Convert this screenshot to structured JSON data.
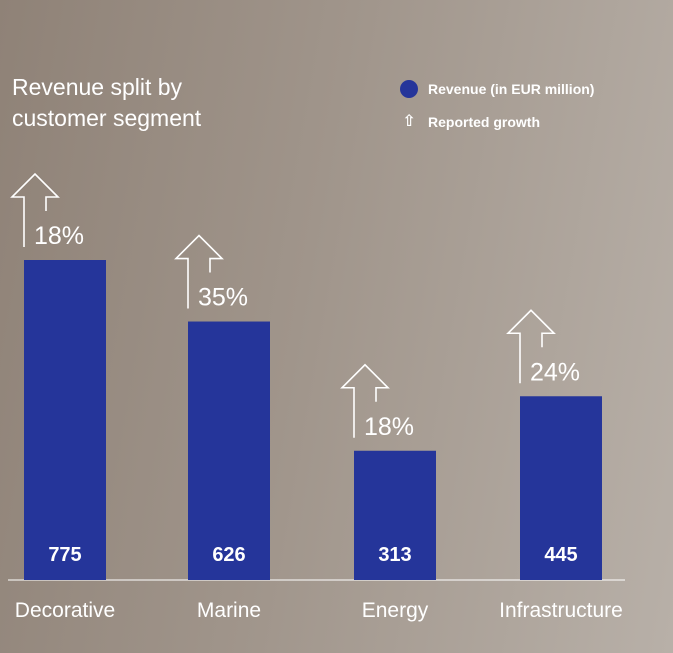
{
  "chart_data": {
    "type": "bar",
    "title": "Revenue split by customer segment",
    "categories": [
      "Decorative",
      "Marine",
      "Energy",
      "Infrastructure"
    ],
    "series": [
      {
        "name": "Revenue (in EUR million)",
        "values": [
          775,
          626,
          313,
          445
        ]
      },
      {
        "name": "Reported growth",
        "values": [
          "18%",
          "35%",
          "18%",
          "24%"
        ]
      }
    ],
    "ylim": [
      0,
      800
    ],
    "grid": false,
    "legend_position": "top-right",
    "bar_color": "#25359a"
  },
  "title_lines": [
    "Revenue split by",
    "customer segment"
  ],
  "legend": {
    "revenue_label": "Revenue (in EUR million)",
    "growth_label": "Reported growth",
    "growth_icon": "outline-up-arrow-icon"
  }
}
